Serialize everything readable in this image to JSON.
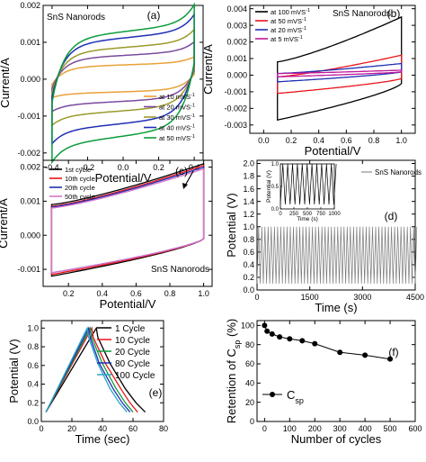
{
  "colors": {
    "black": "#000000",
    "red": "#e8141b",
    "green": "#0c9c3c",
    "blue": "#1f2fb4",
    "magenta": "#c0179a",
    "orange": "#e8a23a",
    "purple": "#7b4a9e",
    "olive": "#9a9a2a",
    "cyan": "#2aa3c6",
    "teal": "#2a8f7a",
    "pink": "#d876c9",
    "gray": "#7a7a7a"
  },
  "chart_data": [
    {
      "panel": "(a)",
      "type": "line",
      "annotation": "SnS Nanorods",
      "xlabel": "Potential/V",
      "ylabel": "Current/A",
      "xlim": [
        -0.45,
        0.45
      ],
      "ylim": [
        -0.0022,
        0.002
      ],
      "xticks": [
        -0.4,
        -0.2,
        0.0,
        0.2,
        0.4
      ],
      "xticklabels": [
        "-0.4",
        "-0.2",
        "0.0",
        "0.2",
        "0.4"
      ],
      "yticks": [
        -0.002,
        -0.001,
        0.0,
        0.001,
        0.002
      ],
      "yticklabels": [
        "-0.002",
        "-0.001",
        "0.000",
        "0.001",
        "0.002"
      ],
      "legend_position": "bottom-right",
      "x_range": [
        -0.4,
        0.4
      ],
      "series": [
        {
          "name": "at 10 mVS",
          "sup": "-1",
          "color": "orange",
          "upper": 0.00045,
          "lower": -0.0004
        },
        {
          "name": "at 20 mVS",
          "sup": "-1",
          "color": "purple",
          "upper": 0.00075,
          "lower": -0.0007
        },
        {
          "name": "at 30 mVS",
          "sup": "-1",
          "color": "olive",
          "upper": 0.001,
          "lower": -0.001
        },
        {
          "name": "at 40 mVS",
          "sup": "-1",
          "color": "blue",
          "upper": 0.0013,
          "lower": -0.0014
        },
        {
          "name": "at 50 mVS",
          "sup": "-1",
          "color": "green",
          "upper": 0.0015,
          "lower": -0.0018
        }
      ]
    },
    {
      "panel": "(b)",
      "type": "line",
      "annotation": "SnS Nanorods",
      "xlabel": "Potential/V",
      "ylabel": "Current/A",
      "xlim": [
        -0.1,
        1.1
      ],
      "ylim": [
        -0.0035,
        0.0042
      ],
      "xticks": [
        0.0,
        0.2,
        0.4,
        0.6,
        0.8,
        1.0
      ],
      "xticklabels": [
        "0.0",
        "0.2",
        "0.4",
        "0.6",
        "0.8",
        "1.0"
      ],
      "yticks": [
        -0.003,
        -0.002,
        -0.001,
        0.0,
        0.001,
        0.002,
        0.003,
        0.004
      ],
      "yticklabels": [
        "-0.003",
        "-0.002",
        "-0.001",
        "0.000",
        "0.001",
        "0.002",
        "0.003",
        "0.004"
      ],
      "legend_position": "top-left",
      "x_range": [
        0.1,
        1.0
      ],
      "series": [
        {
          "name": "at 100 mVS",
          "sup": "-1",
          "color": "black",
          "upper_start": 0.0008,
          "upper_end": 0.0035,
          "lower_start": -0.0027,
          "lower_end": -0.0005
        },
        {
          "name": "at 50 mVS",
          "sup": "-1",
          "color": "red",
          "upper_start": -0.0001,
          "upper_end": 0.0012,
          "lower_start": -0.0011,
          "lower_end": -0.0002
        },
        {
          "name": "at 20 mVS",
          "sup": "-1",
          "color": "blue",
          "upper_start": 0.0001,
          "upper_end": 0.0007,
          "lower_start": -0.0004,
          "lower_end": 0.0002
        },
        {
          "name": "at 5 mVS",
          "sup": "-1",
          "color": "magenta",
          "upper_start": 0.0001,
          "upper_end": 0.0003,
          "lower_start": -0.0001,
          "lower_end": 0.0002
        }
      ]
    },
    {
      "panel": "(c)",
      "type": "line",
      "annotation": "SnS Nanorods",
      "xlabel": "Potential/V",
      "ylabel": "Current/A",
      "xlim": [
        0.05,
        1.05
      ],
      "ylim": [
        -0.0015,
        0.0022
      ],
      "xticks": [
        0.2,
        0.4,
        0.6,
        0.8,
        1.0
      ],
      "xticklabels": [
        "0.2",
        "0.4",
        "0.6",
        "0.8",
        "1.0"
      ],
      "yticks": [
        -0.001,
        0.0,
        0.001,
        0.002
      ],
      "yticklabels": [
        "-0.001",
        "0.000",
        "0.001",
        "0.002"
      ],
      "legend_position": "top-left",
      "x_range": [
        0.1,
        1.0
      ],
      "series": [
        {
          "name": "1st cycle",
          "color": "black",
          "upper_start": 0.0009,
          "upper_end": 0.0021,
          "lower_start": -0.0012,
          "lower_end": -0.0001
        },
        {
          "name": "10th cycle",
          "color": "red",
          "upper_start": 0.00085,
          "upper_end": 0.00205,
          "lower_start": -0.00115,
          "lower_end": -0.0001
        },
        {
          "name": "20th cycle",
          "color": "blue",
          "upper_start": 0.00083,
          "upper_end": 0.002,
          "lower_start": -0.0011,
          "lower_end": -0.0001
        },
        {
          "name": "50th cycle",
          "color": "pink",
          "upper_start": 0.0008,
          "upper_end": 0.00195,
          "lower_start": -0.0011,
          "lower_end": -0.0001
        }
      ]
    },
    {
      "panel": "(d)",
      "type": "line",
      "xlabel": "Time (s)",
      "ylabel": "Potential (V)",
      "xlim": [
        0,
        4500
      ],
      "ylim": [
        0.0,
        2.05
      ],
      "xticks": [
        0,
        1500,
        3000,
        4500
      ],
      "xticklabels": [
        "0",
        "1500",
        "3000",
        "4500"
      ],
      "yticks": [
        0.0,
        0.2,
        0.4,
        0.6,
        0.8,
        1.0,
        1.2,
        1.4,
        1.6,
        1.8,
        2.0
      ],
      "yticklabels": [
        "0.0",
        "0.2",
        "0.4",
        "0.6",
        "0.8",
        "1.0",
        "1.2",
        "1.4",
        "1.6",
        "1.8",
        "2.0"
      ],
      "legend_position": "top-right",
      "series": [
        {
          "name": "SnS Nanorods",
          "color": "gray",
          "min": 0.1,
          "max": 1.0,
          "period": 90
        }
      ],
      "inset": {
        "xlabel": "Time (s)",
        "ylabel": "Potential (V)",
        "xlim": [
          0,
          1000
        ],
        "ylim": [
          0.0,
          1.0
        ],
        "xticks": [
          0,
          250,
          500,
          750,
          1000
        ],
        "xticklabels": [
          "0",
          "250",
          "500",
          "750",
          "1000"
        ],
        "yticks": [
          0.0,
          0.5,
          1.0
        ],
        "yticklabels": [
          "0.0",
          "0.5",
          "1.0"
        ],
        "min": 0.1,
        "max": 1.0,
        "period": 90
      }
    },
    {
      "panel": "(e)",
      "type": "line",
      "xlabel": "Time (sec)",
      "ylabel": "Potential (V)",
      "xlim": [
        0,
        80
      ],
      "ylim": [
        0.0,
        1.08
      ],
      "xticks": [
        0,
        20,
        40,
        60,
        80
      ],
      "xticklabels": [
        "0",
        "20",
        "40",
        "60",
        "80"
      ],
      "yticks": [
        0.0,
        0.2,
        0.4,
        0.6,
        0.8,
        1.0
      ],
      "yticklabels": [
        "0.0",
        "0.2",
        "0.4",
        "0.6",
        "0.8",
        "1.0"
      ],
      "legend_position": "top-right",
      "series": [
        {
          "name": "1 Cycle",
          "color": "black",
          "x": [
            3,
            36,
            37,
            45,
            55,
            62,
            68
          ],
          "y": [
            0.1,
            1.0,
            0.9,
            0.62,
            0.35,
            0.2,
            0.1
          ]
        },
        {
          "name": "10 Cycle",
          "color": "red",
          "x": [
            3,
            33,
            34,
            42,
            52,
            58,
            63
          ],
          "y": [
            0.1,
            1.0,
            0.9,
            0.62,
            0.35,
            0.2,
            0.1
          ]
        },
        {
          "name": "20 Cycle",
          "color": "green",
          "x": [
            3,
            32,
            33,
            40,
            49,
            55,
            60
          ],
          "y": [
            0.1,
            1.0,
            0.9,
            0.62,
            0.35,
            0.2,
            0.1
          ]
        },
        {
          "name": "80 Cycle",
          "color": "blue",
          "x": [
            3,
            31,
            32,
            38,
            47,
            53,
            58
          ],
          "y": [
            0.1,
            1.0,
            0.9,
            0.62,
            0.35,
            0.2,
            0.1
          ]
        },
        {
          "name": "100 Cycle",
          "color": "cyan",
          "x": [
            3,
            30,
            31,
            37,
            45,
            51,
            56
          ],
          "y": [
            0.1,
            1.0,
            0.9,
            0.62,
            0.35,
            0.2,
            0.1
          ]
        }
      ]
    },
    {
      "panel": "(f)",
      "type": "line",
      "xlabel": "Number of cycles",
      "ylabel": "Retention of C",
      "ylabel_sub": "sp",
      "ylabel_suffix": " (%)",
      "xlim": [
        -30,
        600
      ],
      "ylim": [
        0,
        105
      ],
      "xticks": [
        0,
        100,
        200,
        300,
        400,
        500,
        600
      ],
      "xticklabels": [
        "0",
        "100",
        "200",
        "300",
        "400",
        "500",
        "600"
      ],
      "yticks": [
        0,
        20,
        40,
        60,
        80,
        100
      ],
      "yticklabels": [
        "0",
        "20",
        "40",
        "60",
        "80",
        "100"
      ],
      "legend_position": "bottom-left",
      "series": [
        {
          "name": "C",
          "sub": "sp",
          "color": "black",
          "x": [
            0,
            10,
            30,
            60,
            100,
            150,
            200,
            300,
            400,
            500
          ],
          "y": [
            100,
            94,
            91,
            88,
            86,
            84,
            81,
            72,
            69,
            65
          ]
        }
      ]
    }
  ]
}
